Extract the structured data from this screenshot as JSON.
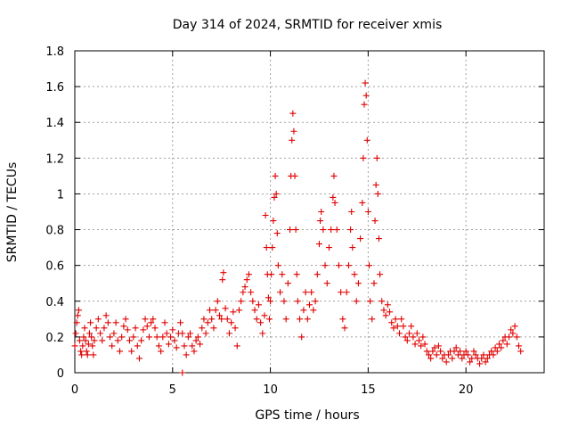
{
  "chart_data": {
    "type": "scatter",
    "title": "Day 314 of 2024, SRMTID for receiver xmis",
    "xlabel": "GPS time / hours",
    "ylabel": "SRMTID / TECUs",
    "xlim": [
      0,
      24
    ],
    "ylim": [
      0,
      1.8
    ],
    "xticks": [
      0,
      5,
      10,
      15,
      20
    ],
    "xtick_labels": [
      "0",
      "5",
      "10",
      "15",
      "20"
    ],
    "yticks": [
      0,
      0.2,
      0.4,
      0.6,
      0.8,
      1,
      1.2,
      1.4,
      1.6,
      1.8
    ],
    "ytick_labels": [
      "0",
      "0.2",
      "0.4",
      "0.6",
      "0.8",
      "1",
      "1.2",
      "1.4",
      "1.6",
      "1.8"
    ],
    "grid": true,
    "marker": "plus",
    "color": "#e00000",
    "series": [
      {
        "name": "SRMTID",
        "points": [
          [
            0.0,
            0.15
          ],
          [
            0.05,
            0.22
          ],
          [
            0.1,
            0.28
          ],
          [
            0.15,
            0.32
          ],
          [
            0.2,
            0.35
          ],
          [
            0.25,
            0.18
          ],
          [
            0.3,
            0.12
          ],
          [
            0.35,
            0.1
          ],
          [
            0.4,
            0.15
          ],
          [
            0.45,
            0.2
          ],
          [
            0.5,
            0.25
          ],
          [
            0.55,
            0.18
          ],
          [
            0.6,
            0.12
          ],
          [
            0.65,
            0.1
          ],
          [
            0.7,
            0.16
          ],
          [
            0.75,
            0.22
          ],
          [
            0.8,
            0.28
          ],
          [
            0.85,
            0.2
          ],
          [
            0.9,
            0.15
          ],
          [
            0.95,
            0.1
          ],
          [
            1.0,
            0.18
          ],
          [
            1.1,
            0.25
          ],
          [
            1.2,
            0.3
          ],
          [
            1.3,
            0.22
          ],
          [
            1.4,
            0.18
          ],
          [
            1.5,
            0.25
          ],
          [
            1.6,
            0.32
          ],
          [
            1.7,
            0.28
          ],
          [
            1.8,
            0.2
          ],
          [
            1.9,
            0.15
          ],
          [
            2.0,
            0.22
          ],
          [
            2.1,
            0.28
          ],
          [
            2.2,
            0.18
          ],
          [
            2.3,
            0.12
          ],
          [
            2.4,
            0.2
          ],
          [
            2.5,
            0.26
          ],
          [
            2.6,
            0.3
          ],
          [
            2.7,
            0.24
          ],
          [
            2.8,
            0.18
          ],
          [
            2.9,
            0.12
          ],
          [
            3.0,
            0.2
          ],
          [
            3.1,
            0.25
          ],
          [
            3.2,
            0.15
          ],
          [
            3.3,
            0.08
          ],
          [
            3.4,
            0.18
          ],
          [
            3.5,
            0.24
          ],
          [
            3.6,
            0.3
          ],
          [
            3.7,
            0.26
          ],
          [
            3.8,
            0.2
          ],
          [
            3.9,
            0.28
          ],
          [
            4.0,
            0.3
          ],
          [
            4.1,
            0.25
          ],
          [
            4.2,
            0.2
          ],
          [
            4.3,
            0.15
          ],
          [
            4.4,
            0.12
          ],
          [
            4.5,
            0.2
          ],
          [
            4.6,
            0.28
          ],
          [
            4.7,
            0.22
          ],
          [
            4.8,
            0.16
          ],
          [
            4.9,
            0.2
          ],
          [
            5.0,
            0.24
          ],
          [
            5.1,
            0.18
          ],
          [
            5.2,
            0.14
          ],
          [
            5.3,
            0.22
          ],
          [
            5.4,
            0.28
          ],
          [
            5.5,
            0.22
          ],
          [
            5.5,
            0.0
          ],
          [
            5.6,
            0.15
          ],
          [
            5.7,
            0.1
          ],
          [
            5.8,
            0.2
          ],
          [
            5.9,
            0.22
          ],
          [
            6.0,
            0.15
          ],
          [
            6.1,
            0.12
          ],
          [
            6.2,
            0.18
          ],
          [
            6.3,
            0.2
          ],
          [
            6.4,
            0.16
          ],
          [
            6.5,
            0.25
          ],
          [
            6.6,
            0.3
          ],
          [
            6.7,
            0.22
          ],
          [
            6.8,
            0.28
          ],
          [
            6.9,
            0.35
          ],
          [
            7.0,
            0.3
          ],
          [
            7.1,
            0.25
          ],
          [
            7.2,
            0.35
          ],
          [
            7.3,
            0.4
          ],
          [
            7.4,
            0.32
          ],
          [
            7.5,
            0.3
          ],
          [
            7.55,
            0.52
          ],
          [
            7.6,
            0.56
          ],
          [
            7.7,
            0.36
          ],
          [
            7.8,
            0.3
          ],
          [
            7.9,
            0.22
          ],
          [
            8.0,
            0.28
          ],
          [
            8.1,
            0.34
          ],
          [
            8.2,
            0.25
          ],
          [
            8.3,
            0.15
          ],
          [
            8.4,
            0.35
          ],
          [
            8.5,
            0.4
          ],
          [
            8.6,
            0.45
          ],
          [
            8.7,
            0.48
          ],
          [
            8.8,
            0.52
          ],
          [
            8.9,
            0.55
          ],
          [
            9.0,
            0.45
          ],
          [
            9.1,
            0.4
          ],
          [
            9.2,
            0.35
          ],
          [
            9.3,
            0.3
          ],
          [
            9.4,
            0.38
          ],
          [
            9.5,
            0.28
          ],
          [
            9.6,
            0.22
          ],
          [
            9.7,
            0.32
          ],
          [
            9.75,
            0.88
          ],
          [
            9.8,
            0.7
          ],
          [
            9.85,
            0.55
          ],
          [
            9.9,
            0.42
          ],
          [
            9.95,
            0.3
          ],
          [
            10.0,
            0.4
          ],
          [
            10.05,
            0.55
          ],
          [
            10.1,
            0.7
          ],
          [
            10.15,
            0.85
          ],
          [
            10.2,
            0.98
          ],
          [
            10.25,
            1.1
          ],
          [
            10.3,
            1.0
          ],
          [
            10.35,
            0.78
          ],
          [
            10.4,
            0.6
          ],
          [
            10.5,
            0.45
          ],
          [
            10.6,
            0.55
          ],
          [
            10.7,
            0.4
          ],
          [
            10.8,
            0.3
          ],
          [
            10.9,
            0.5
          ],
          [
            11.0,
            0.8
          ],
          [
            11.05,
            1.1
          ],
          [
            11.1,
            1.3
          ],
          [
            11.15,
            1.45
          ],
          [
            11.2,
            1.35
          ],
          [
            11.25,
            1.1
          ],
          [
            11.3,
            0.8
          ],
          [
            11.35,
            0.55
          ],
          [
            11.4,
            0.4
          ],
          [
            11.5,
            0.3
          ],
          [
            11.6,
            0.2
          ],
          [
            11.7,
            0.35
          ],
          [
            11.8,
            0.45
          ],
          [
            11.9,
            0.3
          ],
          [
            12.0,
            0.38
          ],
          [
            12.1,
            0.45
          ],
          [
            12.2,
            0.35
          ],
          [
            12.3,
            0.4
          ],
          [
            12.4,
            0.55
          ],
          [
            12.5,
            0.72
          ],
          [
            12.55,
            0.85
          ],
          [
            12.6,
            0.9
          ],
          [
            12.7,
            0.8
          ],
          [
            12.8,
            0.6
          ],
          [
            12.9,
            0.5
          ],
          [
            13.0,
            0.7
          ],
          [
            13.1,
            0.8
          ],
          [
            13.2,
            0.98
          ],
          [
            13.25,
            1.1
          ],
          [
            13.3,
            0.95
          ],
          [
            13.4,
            0.8
          ],
          [
            13.5,
            0.6
          ],
          [
            13.6,
            0.45
          ],
          [
            13.7,
            0.3
          ],
          [
            13.8,
            0.25
          ],
          [
            13.9,
            0.45
          ],
          [
            14.0,
            0.6
          ],
          [
            14.1,
            0.8
          ],
          [
            14.15,
            0.9
          ],
          [
            14.2,
            0.7
          ],
          [
            14.3,
            0.55
          ],
          [
            14.4,
            0.4
          ],
          [
            14.5,
            0.5
          ],
          [
            14.6,
            0.75
          ],
          [
            14.7,
            0.95
          ],
          [
            14.75,
            1.2
          ],
          [
            14.8,
            1.5
          ],
          [
            14.85,
            1.62
          ],
          [
            14.9,
            1.55
          ],
          [
            14.95,
            1.3
          ],
          [
            15.0,
            0.9
          ],
          [
            15.05,
            0.6
          ],
          [
            15.1,
            0.4
          ],
          [
            15.2,
            0.3
          ],
          [
            15.3,
            0.5
          ],
          [
            15.35,
            0.85
          ],
          [
            15.4,
            1.05
          ],
          [
            15.45,
            1.2
          ],
          [
            15.5,
            1.0
          ],
          [
            15.55,
            0.75
          ],
          [
            15.6,
            0.55
          ],
          [
            15.7,
            0.4
          ],
          [
            15.8,
            0.35
          ],
          [
            15.9,
            0.32
          ],
          [
            16.0,
            0.38
          ],
          [
            16.1,
            0.34
          ],
          [
            16.2,
            0.28
          ],
          [
            16.3,
            0.25
          ],
          [
            16.4,
            0.3
          ],
          [
            16.5,
            0.26
          ],
          [
            16.6,
            0.22
          ],
          [
            16.7,
            0.3
          ],
          [
            16.8,
            0.26
          ],
          [
            16.9,
            0.2
          ],
          [
            17.0,
            0.18
          ],
          [
            17.1,
            0.22
          ],
          [
            17.2,
            0.26
          ],
          [
            17.3,
            0.2
          ],
          [
            17.4,
            0.16
          ],
          [
            17.5,
            0.22
          ],
          [
            17.6,
            0.18
          ],
          [
            17.7,
            0.15
          ],
          [
            17.8,
            0.2
          ],
          [
            17.9,
            0.16
          ],
          [
            18.0,
            0.12
          ],
          [
            18.1,
            0.1
          ],
          [
            18.2,
            0.08
          ],
          [
            18.3,
            0.12
          ],
          [
            18.4,
            0.14
          ],
          [
            18.5,
            0.1
          ],
          [
            18.6,
            0.15
          ],
          [
            18.7,
            0.12
          ],
          [
            18.8,
            0.08
          ],
          [
            18.9,
            0.1
          ],
          [
            19.0,
            0.06
          ],
          [
            19.1,
            0.1
          ],
          [
            19.2,
            0.12
          ],
          [
            19.3,
            0.08
          ],
          [
            19.4,
            0.12
          ],
          [
            19.5,
            0.14
          ],
          [
            19.6,
            0.1
          ],
          [
            19.7,
            0.12
          ],
          [
            19.8,
            0.08
          ],
          [
            19.9,
            0.1
          ],
          [
            20.0,
            0.12
          ],
          [
            20.1,
            0.1
          ],
          [
            20.2,
            0.06
          ],
          [
            20.3,
            0.08
          ],
          [
            20.4,
            0.12
          ],
          [
            20.5,
            0.1
          ],
          [
            20.6,
            0.08
          ],
          [
            20.7,
            0.05
          ],
          [
            20.8,
            0.08
          ],
          [
            20.9,
            0.1
          ],
          [
            21.0,
            0.06
          ],
          [
            21.1,
            0.08
          ],
          [
            21.2,
            0.1
          ],
          [
            21.3,
            0.12
          ],
          [
            21.4,
            0.1
          ],
          [
            21.5,
            0.14
          ],
          [
            21.6,
            0.12
          ],
          [
            21.7,
            0.16
          ],
          [
            21.8,
            0.14
          ],
          [
            21.9,
            0.18
          ],
          [
            22.0,
            0.2
          ],
          [
            22.1,
            0.16
          ],
          [
            22.2,
            0.2
          ],
          [
            22.3,
            0.24
          ],
          [
            22.4,
            0.22
          ],
          [
            22.5,
            0.26
          ],
          [
            22.6,
            0.2
          ],
          [
            22.7,
            0.15
          ],
          [
            22.8,
            0.12
          ]
        ]
      }
    ]
  }
}
